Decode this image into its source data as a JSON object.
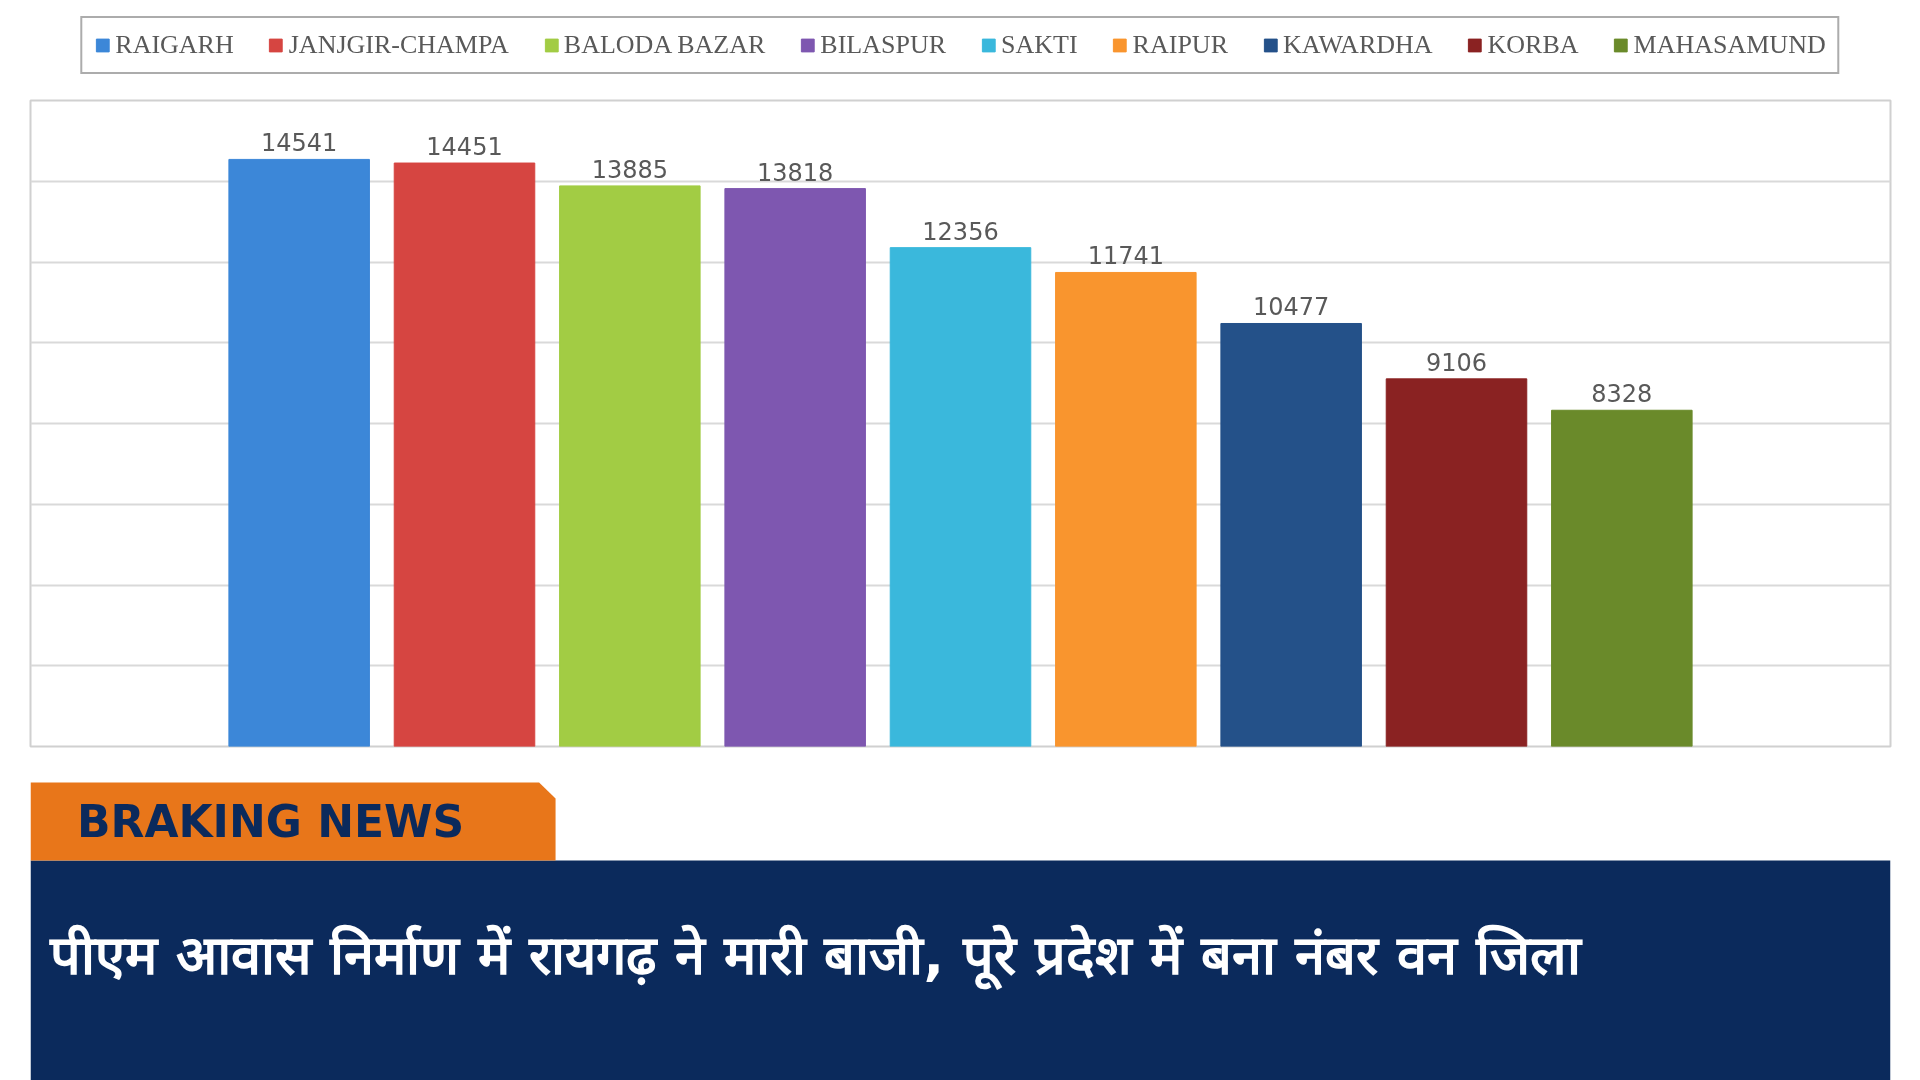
{
  "chart_data": {
    "type": "bar",
    "title": "पीएम आवास निर्माण में रायगढ़ ने मारी बाजी, पूरे प्रदेश में बना नंबर वन जिला",
    "annotations": [
      "BRAKING NEWS"
    ],
    "categories": [
      null
    ],
    "series": [
      {
        "name": "RAIGARH",
        "color": "#3c87d8",
        "values": [
          14541
        ]
      },
      {
        "name": "JANJGIR-CHAMPA",
        "color": "#d64541",
        "values": [
          14451
        ]
      },
      {
        "name": "BALODA BAZAR",
        "color": "#a2cc44",
        "values": [
          13885
        ]
      },
      {
        "name": "BILASPUR",
        "color": "#7e57b0",
        "values": [
          13818
        ]
      },
      {
        "name": "SAKTI",
        "color": "#3ab8dc",
        "values": [
          12356
        ]
      },
      {
        "name": "RAIPUR",
        "color": "#f9952e",
        "values": [
          11741
        ]
      },
      {
        "name": "KAWARDHA",
        "color": "#245189",
        "values": [
          10477
        ]
      },
      {
        "name": "KORBA",
        "color": "#8a2222",
        "values": [
          9106
        ]
      },
      {
        "name": "MAHASAMUND",
        "color": "#6a8a2a",
        "values": [
          8328
        ]
      }
    ],
    "ylim": [
      0,
      16000
    ],
    "yticks": [
      {
        "value": 0,
        "label": null
      },
      {
        "value": 2000,
        "label": null
      },
      {
        "value": 4000,
        "label": null
      },
      {
        "value": 6000,
        "label": null
      },
      {
        "value": 8000,
        "label": null
      },
      {
        "value": 10000,
        "label": null
      },
      {
        "value": 12000,
        "label": null
      },
      {
        "value": 14000,
        "label": null
      },
      {
        "value": 16000,
        "label": null
      }
    ],
    "grid": "y",
    "legend": "top",
    "tick_labels": false,
    "data_labels": true
  }
}
